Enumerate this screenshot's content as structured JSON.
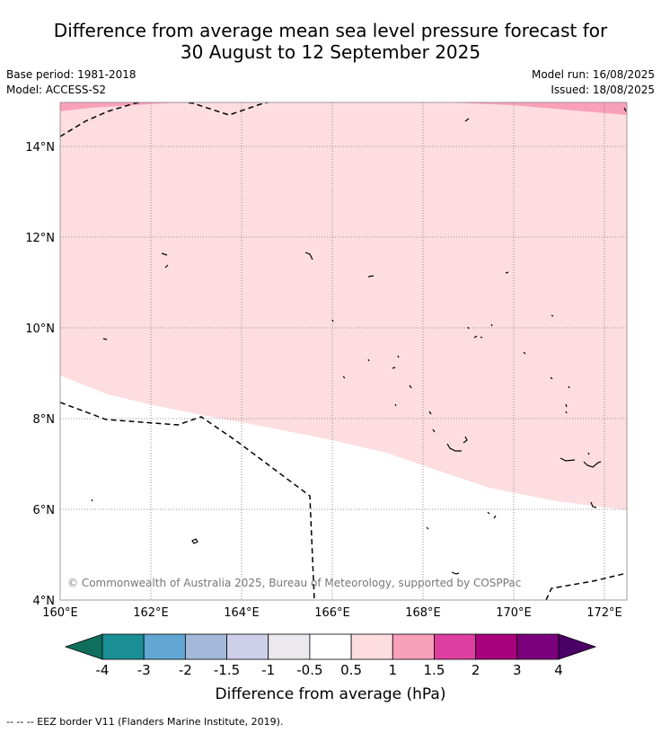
{
  "title": {
    "line1": "Difference from average mean sea level pressure forecast for",
    "line2": "30 August to 12 September 2025"
  },
  "meta": {
    "base_period": "Base period: 1981-2018",
    "model": "Model: ACCESS-S2",
    "model_run": "Model run: 16/08/2025",
    "issued": "Issued: 18/08/2025"
  },
  "map": {
    "lat_labels": [
      "14°N",
      "12°N",
      "10°N",
      "8°N",
      "6°N",
      "4°N"
    ],
    "lon_labels": [
      "160°E",
      "162°E",
      "164°E",
      "166°E",
      "168°E",
      "170°E",
      "172°E"
    ],
    "copyright": "© Commonwealth of Australia 2025, Bureau of Meteorology, supported by COSPPac",
    "grid": true
  },
  "legend": {
    "bins": [
      {
        "color": "#1a8f95"
      },
      {
        "color": "#62a7d3"
      },
      {
        "color": "#a4b9da"
      },
      {
        "color": "#cdd0e8"
      },
      {
        "color": "#ebe8ee"
      },
      {
        "color": "#ffffff"
      },
      {
        "color": "#fddde0"
      },
      {
        "color": "#f9a0bb"
      },
      {
        "color": "#dd3fa0"
      },
      {
        "color": "#a9007c"
      },
      {
        "color": "#7b007b"
      }
    ],
    "low_arrow_color": "#0f6e5c",
    "high_arrow_color": "#4b0066",
    "tick_labels": [
      "-4",
      "-3",
      "-2",
      "-1.5",
      "-1",
      "-0.5",
      "0.5",
      "1",
      "1.5",
      "2",
      "3",
      "4"
    ],
    "title": "Difference from average (hPa)"
  },
  "footnote": "--  --  -- EEZ border V11 (Flanders Marine Institute, 2019)."
}
